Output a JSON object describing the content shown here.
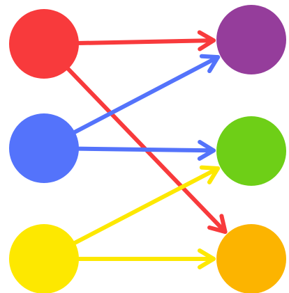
{
  "nodes": [
    {
      "color": "#f83a3c"
    },
    {
      "color": "#5473fb"
    },
    {
      "color": "#fde800"
    },
    {
      "color": "#953d9b"
    },
    {
      "color": "#6ecf17"
    },
    {
      "color": "#fcb400"
    }
  ],
  "edges": [
    {
      "from": 0,
      "to": 3,
      "color": "#f83a3c"
    },
    {
      "from": 0,
      "to": 5,
      "color": "#f83a3c"
    },
    {
      "from": 1,
      "to": 3,
      "color": "#5473fb"
    },
    {
      "from": 1,
      "to": 4,
      "color": "#5473fb"
    },
    {
      "from": 2,
      "to": 4,
      "color": "#fde800"
    },
    {
      "from": 2,
      "to": 5,
      "color": "#fde800"
    }
  ]
}
